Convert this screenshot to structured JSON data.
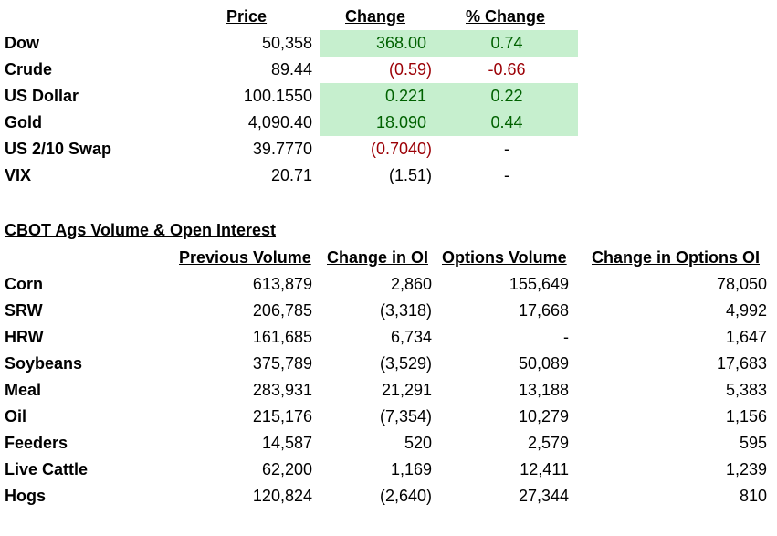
{
  "markets": {
    "headers": {
      "price": "Price",
      "change": "Change",
      "pct_change": "% Change"
    },
    "rows": [
      {
        "name": "Dow",
        "price": "50,358",
        "change": "368.00",
        "pct": "0.74"
      },
      {
        "name": "Crude",
        "price": "89.44",
        "change": "(0.59)",
        "pct": "-0.66"
      },
      {
        "name": "US Dollar",
        "price": "100.1550",
        "change": "0.221",
        "pct": "0.22"
      },
      {
        "name": "Gold",
        "price": "4,090.40",
        "change": "18.090",
        "pct": "0.44"
      },
      {
        "name": "US 2/10 Swap",
        "price": "39.7770",
        "change": "(0.7040)",
        "pct": "-"
      },
      {
        "name": "VIX",
        "price": "20.71",
        "change": "(1.51)",
        "pct": "-"
      }
    ]
  },
  "cbot": {
    "title": "CBOT Ags Volume & Open Interest",
    "headers": {
      "prev_volume": "Previous Volume",
      "change_oi": "Change in OI",
      "options_volume": "Options Volume",
      "change_options_oi": "Change in Options OI"
    },
    "rows": [
      {
        "name": "Corn",
        "prev": "613,879",
        "oi": "2,860",
        "opt": "155,649",
        "optoi": "78,050"
      },
      {
        "name": "SRW",
        "prev": "206,785",
        "oi": "(3,318)",
        "opt": "17,668",
        "optoi": "4,992"
      },
      {
        "name": "HRW",
        "prev": "161,685",
        "oi": "6,734",
        "opt": "-",
        "optoi": "1,647"
      },
      {
        "name": "Soybeans",
        "prev": "375,789",
        "oi": "(3,529)",
        "opt": "50,089",
        "optoi": "17,683"
      },
      {
        "name": "Meal",
        "prev": "283,931",
        "oi": "21,291",
        "opt": "13,188",
        "optoi": "5,383"
      },
      {
        "name": "Oil",
        "prev": "215,176",
        "oi": "(7,354)",
        "opt": "10,279",
        "optoi": "1,156"
      },
      {
        "name": "Feeders",
        "prev": "14,587",
        "oi": "520",
        "opt": "2,579",
        "optoi": "595"
      },
      {
        "name": "Live Cattle",
        "prev": "62,200",
        "oi": "1,169",
        "opt": "12,411",
        "optoi": "1,239"
      },
      {
        "name": "Hogs",
        "prev": "120,824",
        "oi": "(2,640)",
        "opt": "27,344",
        "optoi": "810"
      }
    ]
  },
  "colors": {
    "positive_bg": "#c6efce",
    "positive_text": "#006100",
    "negative_text": "#9c0006"
  }
}
